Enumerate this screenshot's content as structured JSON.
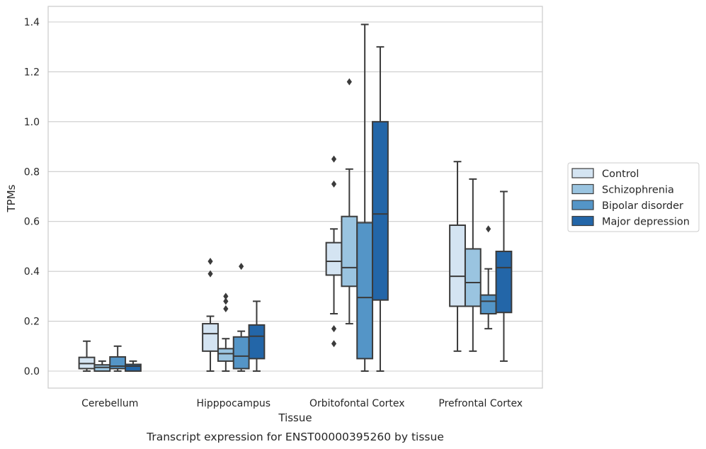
{
  "chart_data": {
    "type": "boxplot",
    "title": "",
    "caption": "Transcript expression for ENST00000395260 by tissue",
    "xlabel": "Tissue",
    "ylabel": "TPMs",
    "ylim": [
      -0.065,
      1.46
    ],
    "yticks": [
      "0.0",
      "0.2",
      "0.4",
      "0.6",
      "0.8",
      "1.0",
      "1.2",
      "1.4"
    ],
    "grid": "horizontal",
    "legend_position": "right",
    "categories": [
      "Cerebellum",
      "Hipppocampus",
      "Orbitofontal Cortex",
      "Prefrontal Cortex"
    ],
    "series": [
      {
        "name": "Control",
        "color": "#d4e4f2",
        "boxes": [
          {
            "whislo": 0.0,
            "q1": 0.01,
            "med": 0.03,
            "q3": 0.055,
            "whishi": 0.12,
            "fliers": []
          },
          {
            "whislo": 0.0,
            "q1": 0.08,
            "med": 0.15,
            "q3": 0.19,
            "whishi": 0.22,
            "fliers": [
              0.39,
              0.44
            ]
          },
          {
            "whislo": 0.23,
            "q1": 0.385,
            "med": 0.44,
            "q3": 0.515,
            "whishi": 0.57,
            "fliers": [
              0.11,
              0.17,
              0.75,
              0.85
            ]
          },
          {
            "whislo": 0.08,
            "q1": 0.26,
            "med": 0.38,
            "q3": 0.585,
            "whishi": 0.84,
            "fliers": []
          }
        ]
      },
      {
        "name": "Schizophrenia",
        "color": "#9ac4e0",
        "boxes": [
          {
            "whislo": 0.0,
            "q1": 0.0,
            "med": 0.015,
            "q3": 0.025,
            "whishi": 0.04,
            "fliers": []
          },
          {
            "whislo": 0.0,
            "q1": 0.04,
            "med": 0.07,
            "q3": 0.09,
            "whishi": 0.13,
            "fliers": [
              0.25,
              0.28,
              0.3
            ]
          },
          {
            "whislo": 0.19,
            "q1": 0.34,
            "med": 0.415,
            "q3": 0.62,
            "whishi": 0.81,
            "fliers": [
              1.16
            ]
          },
          {
            "whislo": 0.08,
            "q1": 0.26,
            "med": 0.355,
            "q3": 0.49,
            "whishi": 0.77,
            "fliers": []
          }
        ]
      },
      {
        "name": "Bipolar disorder",
        "color": "#5495c7",
        "boxes": [
          {
            "whislo": 0.0,
            "q1": 0.01,
            "med": 0.02,
            "q3": 0.057,
            "whishi": 0.1,
            "fliers": []
          },
          {
            "whislo": 0.0,
            "q1": 0.01,
            "med": 0.06,
            "q3": 0.137,
            "whishi": 0.16,
            "fliers": [
              0.42
            ]
          },
          {
            "whislo": 0.0,
            "q1": 0.05,
            "med": 0.295,
            "q3": 0.595,
            "whishi": 1.39,
            "fliers": []
          },
          {
            "whislo": 0.17,
            "q1": 0.23,
            "med": 0.28,
            "q3": 0.305,
            "whishi": 0.41,
            "fliers": [
              0.57
            ]
          }
        ]
      },
      {
        "name": "Major depression",
        "color": "#2366a8",
        "boxes": [
          {
            "whislo": 0.0,
            "q1": 0.0,
            "med": 0.02,
            "q3": 0.027,
            "whishi": 0.04,
            "fliers": []
          },
          {
            "whislo": 0.0,
            "q1": 0.05,
            "med": 0.14,
            "q3": 0.185,
            "whishi": 0.28,
            "fliers": []
          },
          {
            "whislo": 0.0,
            "q1": 0.285,
            "med": 0.63,
            "q3": 1.0,
            "whishi": 1.3,
            "fliers": []
          },
          {
            "whislo": 0.04,
            "q1": 0.235,
            "med": 0.415,
            "q3": 0.48,
            "whishi": 0.72,
            "fliers": []
          }
        ]
      }
    ]
  }
}
